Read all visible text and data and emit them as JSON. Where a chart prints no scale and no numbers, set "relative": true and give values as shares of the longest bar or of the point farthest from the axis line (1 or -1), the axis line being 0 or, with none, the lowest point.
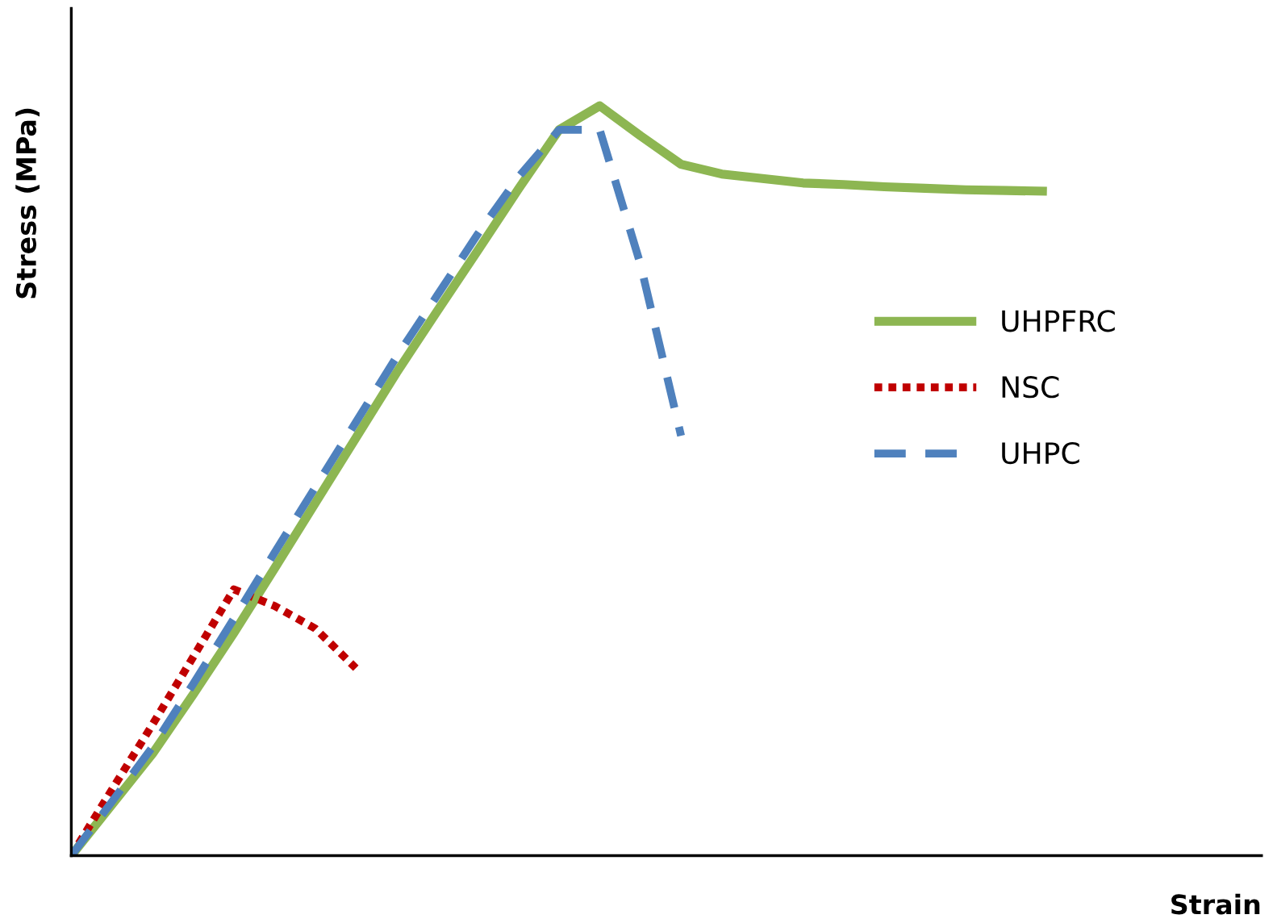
{
  "chart_data": {
    "type": "line",
    "relative": true,
    "xlabel": "Strain",
    "ylabel": "Stress (MPa)",
    "legend": "right",
    "categories": [
      null,
      null,
      null,
      null,
      null,
      null,
      null,
      null,
      null,
      null,
      null,
      null,
      null,
      null,
      null,
      null,
      null,
      null,
      null,
      null,
      null,
      null,
      null,
      null,
      null
    ],
    "series": [
      {
        "name": "UHPFRC",
        "color": "#8db652",
        "line_style": "solid",
        "values": [
          0,
          0.068,
          0.136,
          0.215,
          0.297,
          0.383,
          0.47,
          0.557,
          0.644,
          0.726,
          0.807,
          0.889,
          0.968,
          1.0,
          0.96,
          0.922,
          0.909,
          0.903,
          0.897,
          0.895,
          0.892,
          0.89,
          0.888,
          0.887,
          0.886
        ]
      },
      {
        "name": "NSC",
        "color": "#c00000",
        "line_style": "dotted",
        "values": [
          0,
          0.088,
          0.175,
          0.265,
          0.355,
          0.333,
          0.303,
          0.25,
          null,
          null,
          null,
          null,
          null,
          null,
          null,
          null,
          null,
          null,
          null,
          null,
          null,
          null,
          null,
          null,
          null
        ]
      },
      {
        "name": "UHPC",
        "color": "#4f81bd",
        "line_style": "dashed",
        "values": [
          0,
          0.072,
          0.145,
          0.229,
          0.316,
          0.404,
          0.491,
          0.578,
          0.665,
          0.747,
          0.829,
          0.905,
          0.968,
          0.968,
          0.789,
          0.56,
          null,
          null,
          null,
          null,
          null,
          null,
          null,
          null,
          null
        ]
      }
    ]
  }
}
